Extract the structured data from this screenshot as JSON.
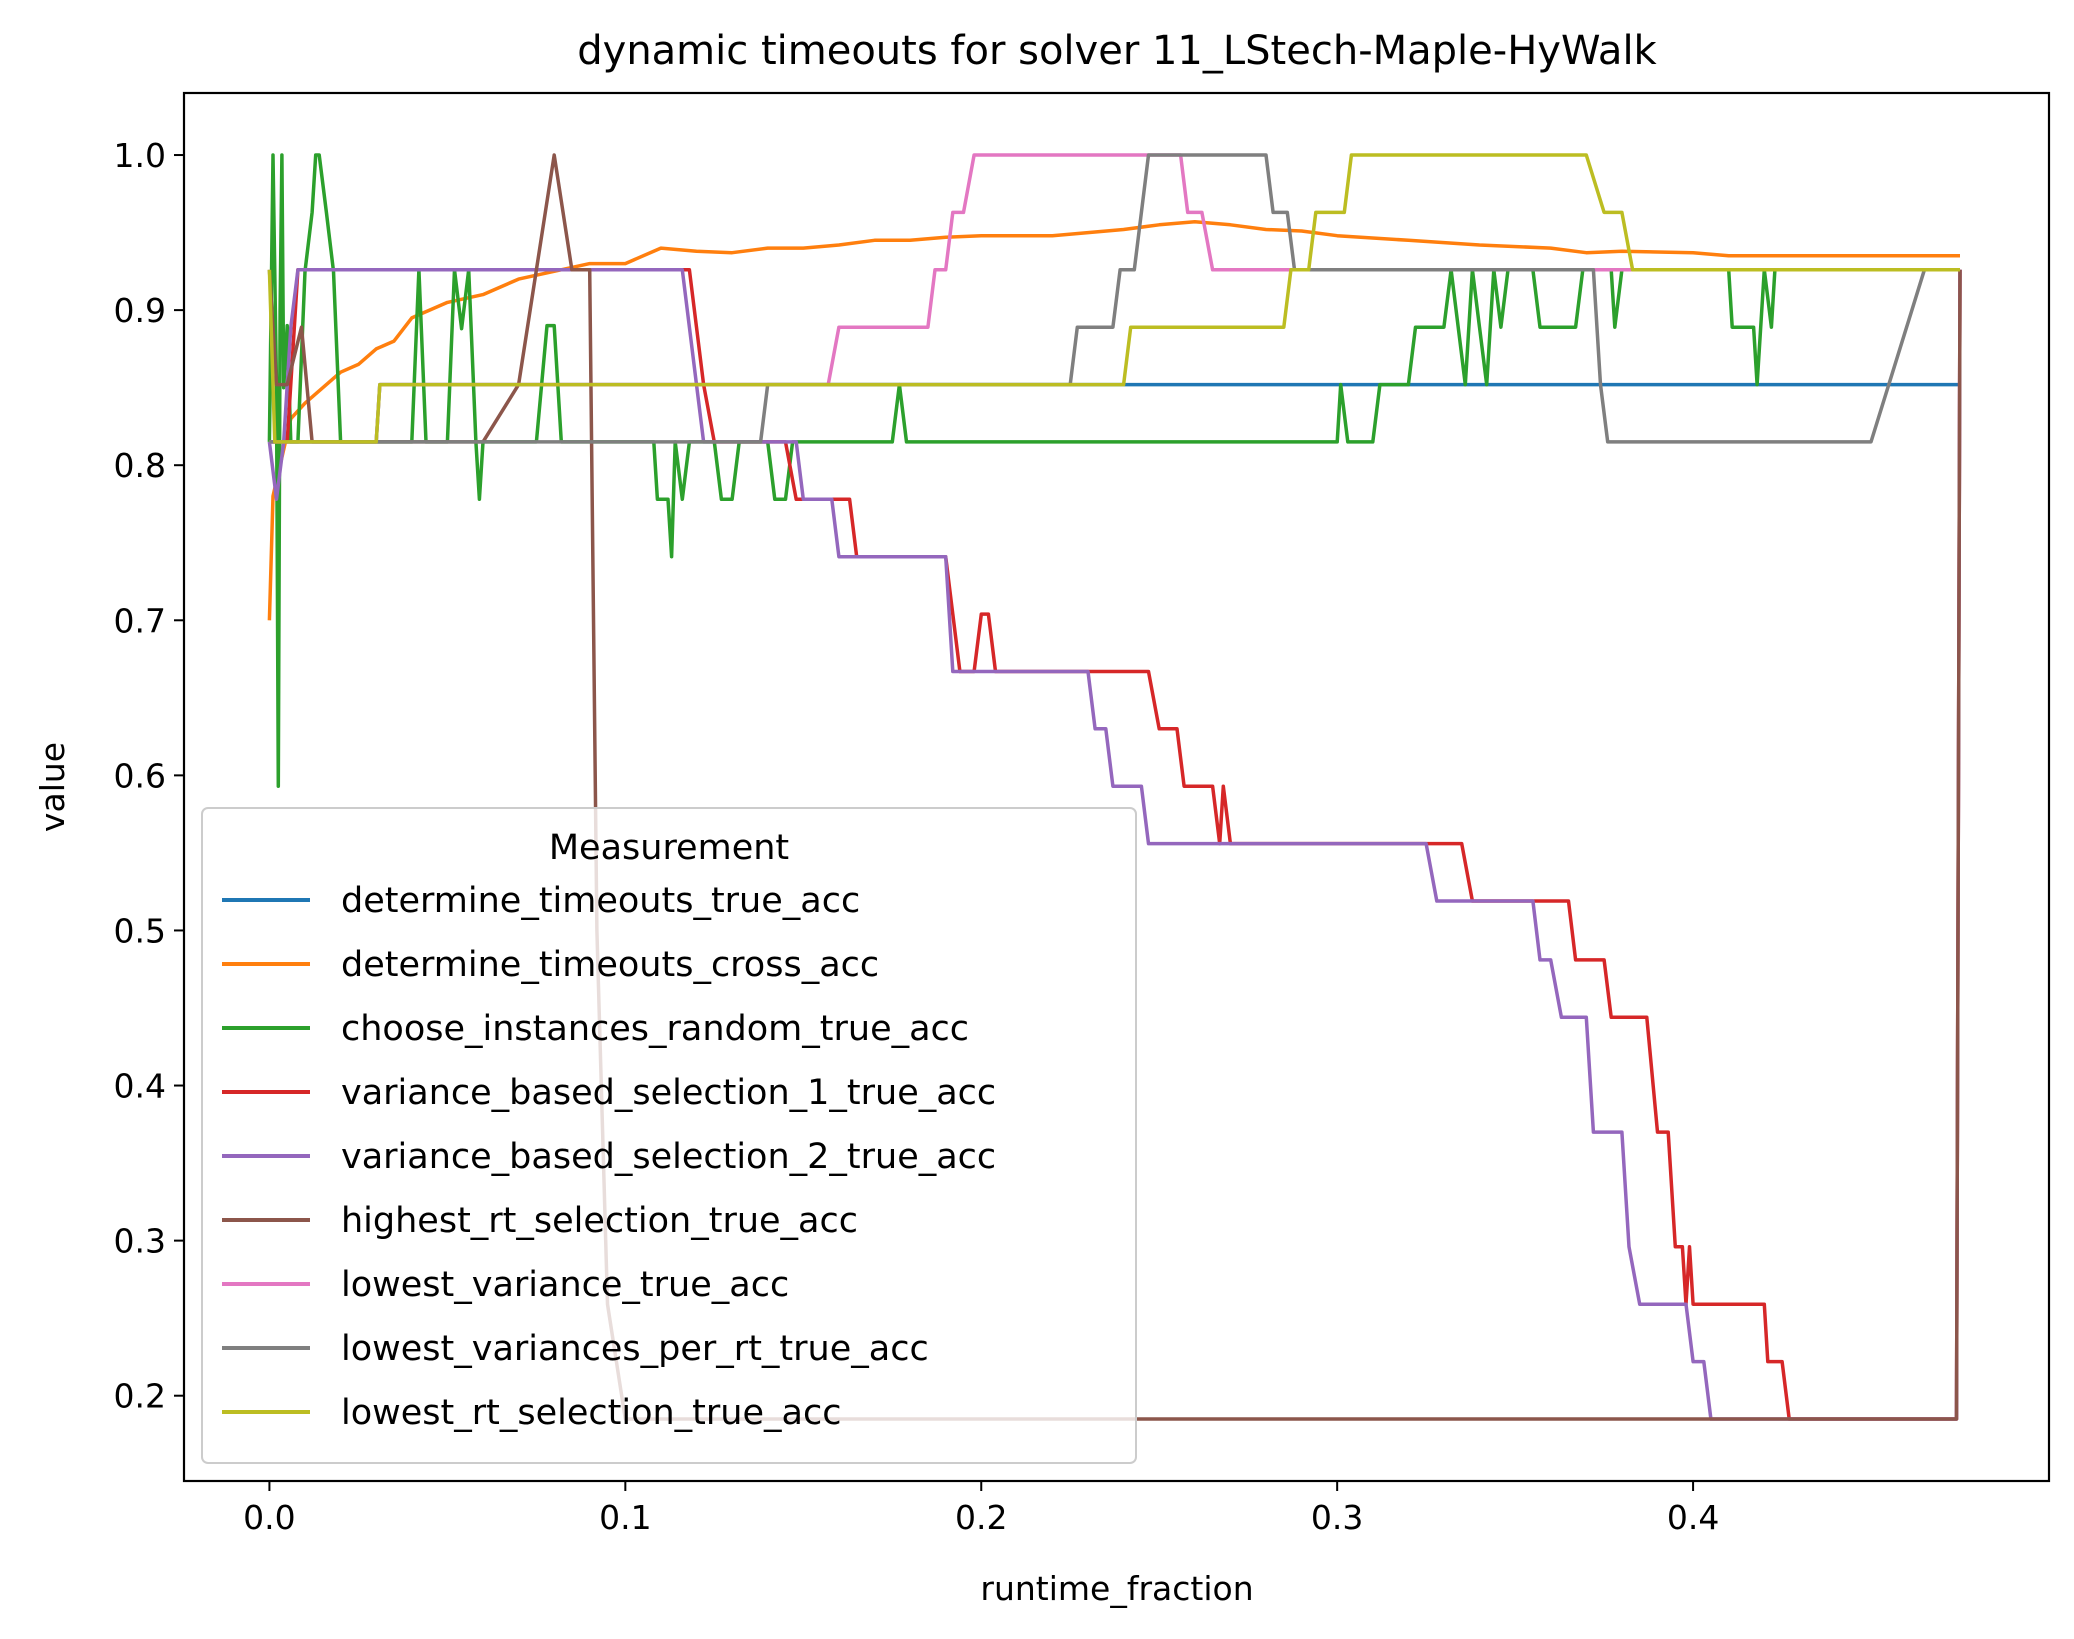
{
  "chart_data": {
    "type": "line",
    "title": "dynamic timeouts for solver 11_LStech-Maple-HyWalk",
    "xlabel": "runtime_fraction",
    "ylabel": "value",
    "xlim": [
      -0.024,
      0.5
    ],
    "ylim": [
      0.145,
      1.04
    ],
    "x_ticks": [
      0.0,
      0.1,
      0.2,
      0.3,
      0.4
    ],
    "x_tick_labels": [
      "0.0",
      "0.1",
      "0.2",
      "0.3",
      "0.4"
    ],
    "y_ticks": [
      0.2,
      0.3,
      0.4,
      0.5,
      0.6,
      0.7,
      0.8,
      0.9,
      1.0
    ],
    "y_tick_labels": [
      "0.2",
      "0.3",
      "0.4",
      "0.5",
      "0.6",
      "0.7",
      "0.8",
      "0.9",
      "1.0"
    ],
    "grid": false,
    "legend": {
      "title": "Measurement",
      "position": "lower-left"
    },
    "series": [
      {
        "name": "determine_timeouts_true_acc",
        "color": "#1f77b4",
        "points": [
          [
            0.0,
            0.815
          ],
          [
            0.03,
            0.815
          ],
          [
            0.031,
            0.852
          ],
          [
            0.475,
            0.852
          ]
        ]
      },
      {
        "name": "determine_timeouts_cross_acc",
        "color": "#ff7f0e",
        "points": [
          [
            0.0,
            0.7
          ],
          [
            0.001,
            0.78
          ],
          [
            0.003,
            0.8
          ],
          [
            0.006,
            0.83
          ],
          [
            0.01,
            0.84
          ],
          [
            0.015,
            0.85
          ],
          [
            0.02,
            0.86
          ],
          [
            0.025,
            0.865
          ],
          [
            0.03,
            0.875
          ],
          [
            0.035,
            0.88
          ],
          [
            0.04,
            0.895
          ],
          [
            0.045,
            0.9
          ],
          [
            0.05,
            0.905
          ],
          [
            0.06,
            0.91
          ],
          [
            0.07,
            0.92
          ],
          [
            0.08,
            0.925
          ],
          [
            0.09,
            0.93
          ],
          [
            0.1,
            0.93
          ],
          [
            0.11,
            0.94
          ],
          [
            0.12,
            0.938
          ],
          [
            0.13,
            0.937
          ],
          [
            0.14,
            0.94
          ],
          [
            0.15,
            0.94
          ],
          [
            0.16,
            0.942
          ],
          [
            0.17,
            0.945
          ],
          [
            0.18,
            0.945
          ],
          [
            0.19,
            0.947
          ],
          [
            0.2,
            0.948
          ],
          [
            0.22,
            0.948
          ],
          [
            0.24,
            0.952
          ],
          [
            0.25,
            0.955
          ],
          [
            0.26,
            0.957
          ],
          [
            0.27,
            0.955
          ],
          [
            0.28,
            0.952
          ],
          [
            0.29,
            0.951
          ],
          [
            0.3,
            0.948
          ],
          [
            0.32,
            0.945
          ],
          [
            0.34,
            0.942
          ],
          [
            0.36,
            0.94
          ],
          [
            0.37,
            0.937
          ],
          [
            0.38,
            0.938
          ],
          [
            0.4,
            0.937
          ],
          [
            0.41,
            0.935
          ],
          [
            0.475,
            0.935
          ]
        ]
      },
      {
        "name": "choose_instances_random_true_acc",
        "color": "#2ca02c",
        "points": [
          [
            0.0,
            0.815
          ],
          [
            0.001,
            1.0
          ],
          [
            0.002,
            0.85
          ],
          [
            0.0025,
            0.593
          ],
          [
            0.003,
            0.9
          ],
          [
            0.0035,
            1.0
          ],
          [
            0.004,
            0.85
          ],
          [
            0.005,
            0.89
          ],
          [
            0.006,
            0.815
          ],
          [
            0.008,
            0.815
          ],
          [
            0.01,
            0.925
          ],
          [
            0.012,
            0.963
          ],
          [
            0.013,
            1.0
          ],
          [
            0.014,
            1.0
          ],
          [
            0.016,
            0.963
          ],
          [
            0.018,
            0.925
          ],
          [
            0.02,
            0.815
          ],
          [
            0.04,
            0.815
          ],
          [
            0.042,
            0.926
          ],
          [
            0.044,
            0.815
          ],
          [
            0.05,
            0.815
          ],
          [
            0.052,
            0.926
          ],
          [
            0.054,
            0.888
          ],
          [
            0.056,
            0.926
          ],
          [
            0.058,
            0.815
          ],
          [
            0.059,
            0.778
          ],
          [
            0.06,
            0.815
          ],
          [
            0.075,
            0.815
          ],
          [
            0.078,
            0.89
          ],
          [
            0.08,
            0.89
          ],
          [
            0.082,
            0.815
          ],
          [
            0.108,
            0.815
          ],
          [
            0.109,
            0.778
          ],
          [
            0.112,
            0.778
          ],
          [
            0.113,
            0.741
          ],
          [
            0.114,
            0.815
          ],
          [
            0.116,
            0.778
          ],
          [
            0.118,
            0.815
          ],
          [
            0.125,
            0.815
          ],
          [
            0.127,
            0.778
          ],
          [
            0.13,
            0.778
          ],
          [
            0.132,
            0.815
          ],
          [
            0.14,
            0.815
          ],
          [
            0.142,
            0.778
          ],
          [
            0.145,
            0.778
          ],
          [
            0.147,
            0.815
          ],
          [
            0.175,
            0.815
          ],
          [
            0.177,
            0.852
          ],
          [
            0.179,
            0.815
          ],
          [
            0.3,
            0.815
          ],
          [
            0.301,
            0.852
          ],
          [
            0.303,
            0.815
          ],
          [
            0.31,
            0.815
          ],
          [
            0.312,
            0.852
          ],
          [
            0.32,
            0.852
          ],
          [
            0.322,
            0.889
          ],
          [
            0.33,
            0.889
          ],
          [
            0.332,
            0.926
          ],
          [
            0.334,
            0.889
          ],
          [
            0.336,
            0.852
          ],
          [
            0.338,
            0.926
          ],
          [
            0.34,
            0.889
          ],
          [
            0.342,
            0.852
          ],
          [
            0.344,
            0.926
          ],
          [
            0.346,
            0.889
          ],
          [
            0.348,
            0.926
          ],
          [
            0.355,
            0.926
          ],
          [
            0.357,
            0.889
          ],
          [
            0.367,
            0.889
          ],
          [
            0.369,
            0.926
          ],
          [
            0.377,
            0.926
          ],
          [
            0.378,
            0.889
          ],
          [
            0.38,
            0.926
          ],
          [
            0.41,
            0.926
          ],
          [
            0.411,
            0.889
          ],
          [
            0.417,
            0.889
          ],
          [
            0.418,
            0.852
          ],
          [
            0.419,
            0.889
          ],
          [
            0.42,
            0.926
          ],
          [
            0.422,
            0.889
          ],
          [
            0.423,
            0.926
          ],
          [
            0.475,
            0.926
          ]
        ]
      },
      {
        "name": "variance_based_selection_1_true_acc",
        "color": "#d62728",
        "points": [
          [
            0.0,
            0.815
          ],
          [
            0.005,
            0.815
          ],
          [
            0.008,
            0.926
          ],
          [
            0.118,
            0.926
          ],
          [
            0.12,
            0.889
          ],
          [
            0.122,
            0.852
          ],
          [
            0.125,
            0.815
          ],
          [
            0.145,
            0.815
          ],
          [
            0.148,
            0.778
          ],
          [
            0.163,
            0.778
          ],
          [
            0.165,
            0.741
          ],
          [
            0.19,
            0.741
          ],
          [
            0.192,
            0.704
          ],
          [
            0.194,
            0.667
          ],
          [
            0.198,
            0.667
          ],
          [
            0.2,
            0.704
          ],
          [
            0.202,
            0.704
          ],
          [
            0.204,
            0.667
          ],
          [
            0.247,
            0.667
          ],
          [
            0.25,
            0.63
          ],
          [
            0.255,
            0.63
          ],
          [
            0.257,
            0.593
          ],
          [
            0.265,
            0.593
          ],
          [
            0.267,
            0.556
          ],
          [
            0.268,
            0.593
          ],
          [
            0.27,
            0.556
          ],
          [
            0.335,
            0.556
          ],
          [
            0.338,
            0.519
          ],
          [
            0.365,
            0.519
          ],
          [
            0.367,
            0.481
          ],
          [
            0.375,
            0.481
          ],
          [
            0.377,
            0.444
          ],
          [
            0.387,
            0.444
          ],
          [
            0.39,
            0.37
          ],
          [
            0.393,
            0.37
          ],
          [
            0.395,
            0.296
          ],
          [
            0.397,
            0.296
          ],
          [
            0.398,
            0.259
          ],
          [
            0.399,
            0.296
          ],
          [
            0.4,
            0.259
          ],
          [
            0.42,
            0.259
          ],
          [
            0.421,
            0.222
          ],
          [
            0.425,
            0.222
          ],
          [
            0.427,
            0.185
          ],
          [
            0.474,
            0.185
          ],
          [
            0.475,
            0.926
          ]
        ]
      },
      {
        "name": "variance_based_selection_2_true_acc",
        "color": "#9467bd",
        "points": [
          [
            0.0,
            0.815
          ],
          [
            0.002,
            0.778
          ],
          [
            0.004,
            0.815
          ],
          [
            0.006,
            0.889
          ],
          [
            0.008,
            0.926
          ],
          [
            0.116,
            0.926
          ],
          [
            0.118,
            0.889
          ],
          [
            0.12,
            0.852
          ],
          [
            0.122,
            0.815
          ],
          [
            0.148,
            0.815
          ],
          [
            0.15,
            0.778
          ],
          [
            0.158,
            0.778
          ],
          [
            0.16,
            0.741
          ],
          [
            0.19,
            0.741
          ],
          [
            0.192,
            0.667
          ],
          [
            0.23,
            0.667
          ],
          [
            0.232,
            0.63
          ],
          [
            0.235,
            0.63
          ],
          [
            0.237,
            0.593
          ],
          [
            0.245,
            0.593
          ],
          [
            0.247,
            0.556
          ],
          [
            0.325,
            0.556
          ],
          [
            0.328,
            0.519
          ],
          [
            0.355,
            0.519
          ],
          [
            0.357,
            0.481
          ],
          [
            0.36,
            0.481
          ],
          [
            0.363,
            0.444
          ],
          [
            0.37,
            0.444
          ],
          [
            0.372,
            0.37
          ],
          [
            0.38,
            0.37
          ],
          [
            0.382,
            0.296
          ],
          [
            0.385,
            0.259
          ],
          [
            0.398,
            0.259
          ],
          [
            0.4,
            0.222
          ],
          [
            0.403,
            0.222
          ],
          [
            0.405,
            0.185
          ],
          [
            0.474,
            0.185
          ],
          [
            0.475,
            0.926
          ]
        ]
      },
      {
        "name": "highest_rt_selection_true_acc",
        "color": "#8c564b",
        "points": [
          [
            0.0,
            0.926
          ],
          [
            0.002,
            0.852
          ],
          [
            0.005,
            0.852
          ],
          [
            0.009,
            0.889
          ],
          [
            0.012,
            0.815
          ],
          [
            0.06,
            0.815
          ],
          [
            0.07,
            0.852
          ],
          [
            0.075,
            0.926
          ],
          [
            0.08,
            1.0
          ],
          [
            0.085,
            0.926
          ],
          [
            0.09,
            0.926
          ],
          [
            0.092,
            0.5
          ],
          [
            0.095,
            0.259
          ],
          [
            0.1,
            0.185
          ],
          [
            0.474,
            0.185
          ],
          [
            0.475,
            0.926
          ]
        ]
      },
      {
        "name": "lowest_variance_true_acc",
        "color": "#e377c2",
        "points": [
          [
            0.0,
            0.815
          ],
          [
            0.03,
            0.815
          ],
          [
            0.031,
            0.852
          ],
          [
            0.157,
            0.852
          ],
          [
            0.16,
            0.889
          ],
          [
            0.185,
            0.889
          ],
          [
            0.187,
            0.926
          ],
          [
            0.19,
            0.926
          ],
          [
            0.192,
            0.963
          ],
          [
            0.195,
            0.963
          ],
          [
            0.198,
            1.0
          ],
          [
            0.256,
            1.0
          ],
          [
            0.258,
            0.963
          ],
          [
            0.262,
            0.963
          ],
          [
            0.265,
            0.926
          ],
          [
            0.475,
            0.926
          ]
        ]
      },
      {
        "name": "lowest_variances_per_rt_true_acc",
        "color": "#7f7f7f",
        "points": [
          [
            0.0,
            0.815
          ],
          [
            0.138,
            0.815
          ],
          [
            0.14,
            0.852
          ],
          [
            0.225,
            0.852
          ],
          [
            0.227,
            0.889
          ],
          [
            0.237,
            0.889
          ],
          [
            0.239,
            0.926
          ],
          [
            0.243,
            0.926
          ],
          [
            0.247,
            1.0
          ],
          [
            0.28,
            1.0
          ],
          [
            0.282,
            0.963
          ],
          [
            0.286,
            0.963
          ],
          [
            0.288,
            0.926
          ],
          [
            0.372,
            0.926
          ],
          [
            0.374,
            0.852
          ],
          [
            0.376,
            0.815
          ],
          [
            0.45,
            0.815
          ],
          [
            0.46,
            0.889
          ],
          [
            0.465,
            0.926
          ],
          [
            0.475,
            0.926
          ]
        ]
      },
      {
        "name": "lowest_rt_selection_true_acc",
        "color": "#bcbd22",
        "points": [
          [
            0.0,
            0.926
          ],
          [
            0.0015,
            0.815
          ],
          [
            0.03,
            0.815
          ],
          [
            0.031,
            0.852
          ],
          [
            0.24,
            0.852
          ],
          [
            0.242,
            0.889
          ],
          [
            0.285,
            0.889
          ],
          [
            0.287,
            0.926
          ],
          [
            0.292,
            0.926
          ],
          [
            0.294,
            0.963
          ],
          [
            0.302,
            0.963
          ],
          [
            0.304,
            1.0
          ],
          [
            0.37,
            1.0
          ],
          [
            0.375,
            0.963
          ],
          [
            0.38,
            0.963
          ],
          [
            0.383,
            0.926
          ],
          [
            0.475,
            0.926
          ]
        ]
      }
    ]
  }
}
